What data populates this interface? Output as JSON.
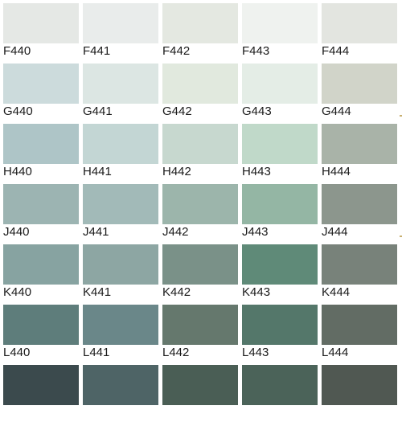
{
  "palette": {
    "rows": [
      {
        "swatches": [
          {
            "code": "F440",
            "color": "#E5E8E5"
          },
          {
            "code": "F441",
            "color": "#E9ECEB"
          },
          {
            "code": "F442",
            "color": "#E4E8E1"
          },
          {
            "code": "F443",
            "color": "#EFF2EF"
          },
          {
            "code": "F444",
            "color": "#E3E5E0"
          }
        ]
      },
      {
        "swatches": [
          {
            "code": "G440",
            "color": "#CCDBDC"
          },
          {
            "code": "G441",
            "color": "#DCE6E3"
          },
          {
            "code": "G442",
            "color": "#E1E9DE"
          },
          {
            "code": "G443",
            "color": "#E4EDE6"
          },
          {
            "code": "G444",
            "color": "#D1D4C9"
          }
        ]
      },
      {
        "swatches": [
          {
            "code": "H440",
            "color": "#AEC5C7"
          },
          {
            "code": "H441",
            "color": "#C3D6D4"
          },
          {
            "code": "H442",
            "color": "#C7D8CF"
          },
          {
            "code": "H443",
            "color": "#C0D9C9"
          },
          {
            "code": "H444",
            "color": "#A9B3A8"
          }
        ]
      },
      {
        "swatches": [
          {
            "code": "J440",
            "color": "#9CB4B2"
          },
          {
            "code": "J441",
            "color": "#A2BAB8"
          },
          {
            "code": "J442",
            "color": "#9CB5AB"
          },
          {
            "code": "J443",
            "color": "#94B6A4"
          },
          {
            "code": "J444",
            "color": "#8C968D"
          }
        ]
      },
      {
        "swatches": [
          {
            "code": "K440",
            "color": "#87A3A1"
          },
          {
            "code": "K441",
            "color": "#8DA6A3"
          },
          {
            "code": "K442",
            "color": "#7A9188"
          },
          {
            "code": "K443",
            "color": "#5F8A78"
          },
          {
            "code": "K444",
            "color": "#78827A"
          }
        ]
      },
      {
        "swatches": [
          {
            "code": "L440",
            "color": "#5E7D7B"
          },
          {
            "code": "L441",
            "color": "#6A8789"
          },
          {
            "code": "L442",
            "color": "#65786D"
          },
          {
            "code": "L443",
            "color": "#54776A"
          },
          {
            "code": "L444",
            "color": "#626C64"
          }
        ]
      },
      {
        "swatches": [
          {
            "code": "",
            "color": "#3B4A4D"
          },
          {
            "code": "",
            "color": "#4E6466"
          },
          {
            "code": "",
            "color": "#4A5E55"
          },
          {
            "code": "",
            "color": "#4B6359"
          },
          {
            "code": "",
            "color": "#505852"
          }
        ]
      }
    ],
    "edge_mark_color": "#C8B070"
  }
}
